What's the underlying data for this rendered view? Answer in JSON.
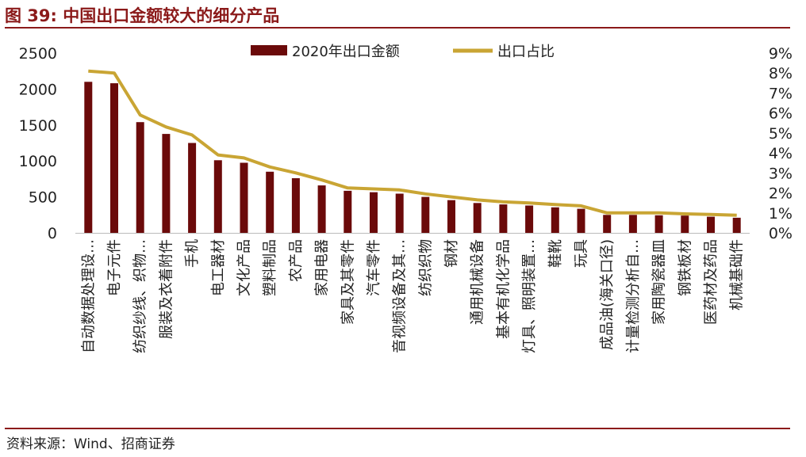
{
  "header": {
    "title": "图 39:  中国出口金额较大的细分产品"
  },
  "footer": {
    "source": "资料来源：Wind、招商证券"
  },
  "colors": {
    "bar": "#6B0A0A",
    "line": "#C9A534",
    "accent": "#8B1A1A"
  },
  "chart_data": {
    "type": "bar",
    "categories": [
      "自动数据处理设…",
      "电子元件",
      "纺织纱线、织物…",
      "服装及衣着附件",
      "手机",
      "电工器材",
      "文化产品",
      "塑料制品",
      "农产品",
      "家用电器",
      "家具及其零件",
      "汽车零件",
      "音视频设备及其…",
      "纺织织物",
      "钢材",
      "通用机械设备",
      "基本有机化学品",
      "灯具、照明装置…",
      "鞋靴",
      "玩具",
      "成品油(海关口径)",
      "计量检测分析自…",
      "家用陶瓷器皿",
      "钢铁板材",
      "医药材及药品",
      "机械基础件"
    ],
    "series": [
      {
        "name": "2020年出口金额",
        "type": "bar",
        "axis": "left",
        "values": [
          2100,
          2080,
          1540,
          1375,
          1250,
          1010,
          975,
          850,
          760,
          660,
          585,
          565,
          545,
          500,
          455,
          415,
          395,
          380,
          355,
          335,
          250,
          250,
          245,
          240,
          225,
          210
        ]
      },
      {
        "name": "出口占比",
        "type": "line",
        "axis": "right",
        "values": [
          8.1,
          8.0,
          5.9,
          5.3,
          4.9,
          3.9,
          3.75,
          3.3,
          3.0,
          2.65,
          2.25,
          2.2,
          2.15,
          1.95,
          1.8,
          1.65,
          1.55,
          1.5,
          1.42,
          1.35,
          1.0,
          1.0,
          1.0,
          0.95,
          0.92,
          0.88
        ]
      }
    ],
    "left_axis": {
      "ylim": [
        0,
        2500
      ],
      "ticks": [
        "0",
        "500",
        "1000",
        "1500",
        "2000",
        "2500"
      ]
    },
    "right_axis": {
      "ylim": [
        0,
        9
      ],
      "ticks": [
        "0%",
        "1%",
        "2%",
        "3%",
        "4%",
        "5%",
        "6%",
        "7%",
        "8%",
        "9%"
      ]
    },
    "legend": {
      "placement": "top-center",
      "entries": [
        "2020年出口金额",
        "出口占比"
      ]
    },
    "grid": false
  }
}
